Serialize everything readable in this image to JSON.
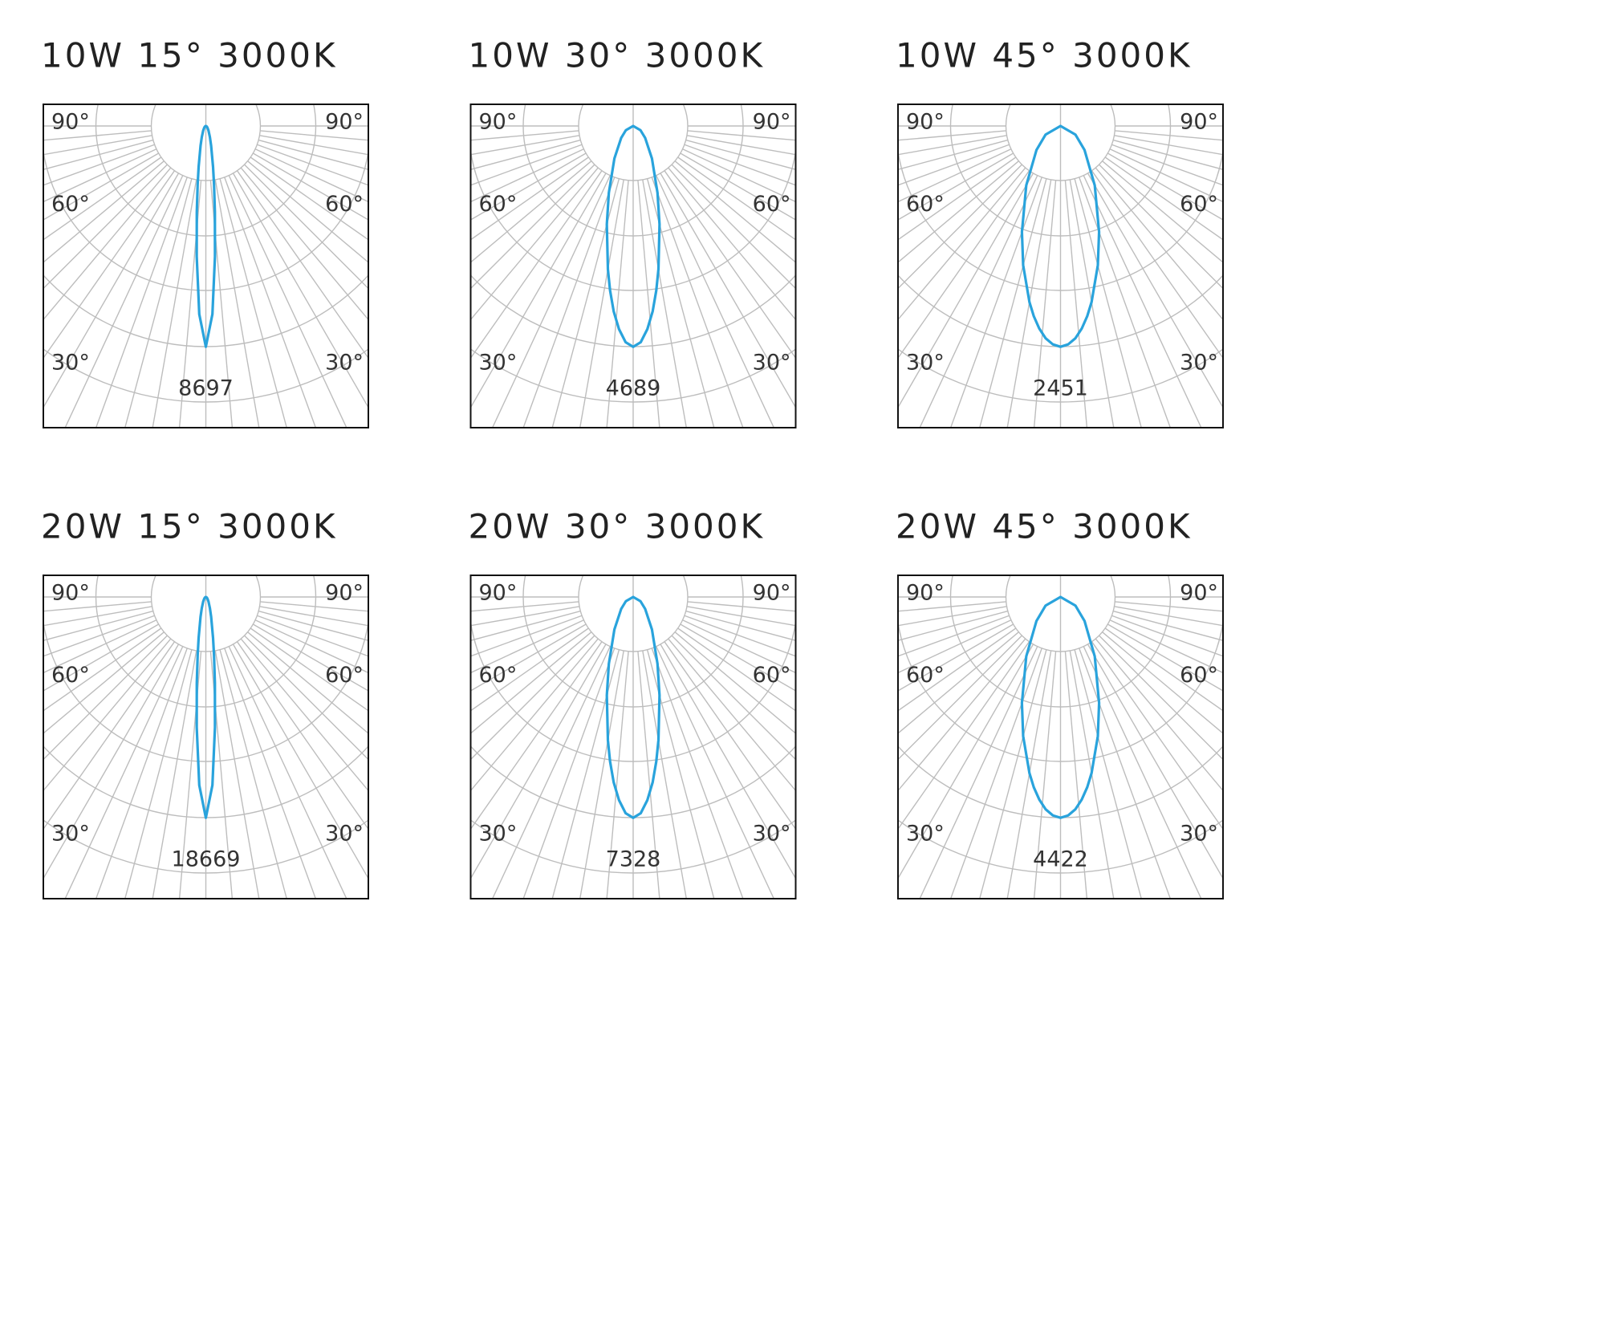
{
  "chart_data": [
    {
      "type": "polar",
      "title": "10W 15°  3000K",
      "color": "#29a3dc",
      "rlim": [
        0,
        10871
      ],
      "angle_ticks": [
        {
          "value": 90,
          "label": "90°"
        },
        {
          "value": 60,
          "label": "60°"
        },
        {
          "value": 30,
          "label": "30°"
        }
      ],
      "x": [
        -90,
        -60,
        -45,
        -30,
        -20,
        -15,
        -10,
        -8,
        -6,
        -4,
        -2,
        0,
        2,
        4,
        6,
        8,
        10,
        15,
        20,
        30,
        45,
        60,
        90
      ],
      "values": [
        0,
        41,
        86,
        209,
        468,
        805,
        1635,
        2313,
        3409,
        5149,
        7419,
        8697,
        7419,
        5149,
        3409,
        2313,
        1635,
        805,
        468,
        209,
        86,
        41,
        0
      ]
    },
    {
      "type": "polar",
      "title": "10W 30°  3000K",
      "color": "#29a3dc",
      "rlim": [
        0,
        5861
      ],
      "angle_ticks": [
        {
          "value": 90,
          "label": "90°"
        },
        {
          "value": 60,
          "label": "60°"
        },
        {
          "value": 30,
          "label": "30°"
        }
      ],
      "x": [
        -90,
        -60,
        -45,
        -30,
        -20,
        -15,
        -10,
        -8,
        -6,
        -4,
        -2,
        0,
        2,
        4,
        6,
        8,
        10,
        15,
        20,
        30,
        45,
        60,
        90
      ],
      "values": [
        0,
        178,
        361,
        797,
        1510,
        2162,
        3090,
        3526,
        3958,
        4323,
        4595,
        4689,
        4595,
        4323,
        3958,
        3526,
        3090,
        2162,
        1510,
        797,
        361,
        178,
        0
      ]
    },
    {
      "type": "polar",
      "title": "10W 45°  3000K",
      "color": "#29a3dc",
      "rlim": [
        0,
        3064
      ],
      "angle_ticks": [
        {
          "value": 90,
          "label": "90°"
        },
        {
          "value": 60,
          "label": "60°"
        },
        {
          "value": 30,
          "label": "30°"
        }
      ],
      "x": [
        -90,
        -60,
        -45,
        -30,
        -20,
        -15,
        -10,
        -8,
        -6,
        -4,
        -2,
        0,
        2,
        4,
        6,
        8,
        10,
        15,
        20,
        30,
        45,
        60,
        90
      ],
      "values": [
        0,
        191,
        377,
        760,
        1252,
        1601,
        1985,
        2132,
        2260,
        2363,
        2426,
        2451,
        2426,
        2363,
        2260,
        2132,
        1985,
        1601,
        1252,
        760,
        377,
        191,
        0
      ]
    },
    {
      "type": "polar",
      "title": "20W 15°  3000K",
      "color": "#29a3dc",
      "rlim": [
        0,
        23336
      ],
      "angle_ticks": [
        {
          "value": 90,
          "label": "90°"
        },
        {
          "value": 60,
          "label": "60°"
        },
        {
          "value": 30,
          "label": "30°"
        }
      ],
      "x": [
        -90,
        -60,
        -45,
        -30,
        -20,
        -15,
        -10,
        -8,
        -6,
        -4,
        -2,
        0,
        2,
        4,
        6,
        8,
        10,
        15,
        20,
        30,
        45,
        60,
        90
      ],
      "values": [
        0,
        88,
        185,
        448,
        1004,
        1729,
        3510,
        4966,
        7318,
        11052,
        15925,
        18669,
        15925,
        11052,
        7318,
        4966,
        3510,
        1729,
        1004,
        448,
        185,
        88,
        0
      ]
    },
    {
      "type": "polar",
      "title": "20W 30°  3000K",
      "color": "#29a3dc",
      "rlim": [
        0,
        9160
      ],
      "angle_ticks": [
        {
          "value": 90,
          "label": "90°"
        },
        {
          "value": 60,
          "label": "60°"
        },
        {
          "value": 30,
          "label": "30°"
        }
      ],
      "x": [
        -90,
        -60,
        -45,
        -30,
        -20,
        -15,
        -10,
        -8,
        -6,
        -4,
        -2,
        0,
        2,
        4,
        6,
        8,
        10,
        15,
        20,
        30,
        45,
        60,
        90
      ],
      "values": [
        0,
        278,
        564,
        1246,
        2360,
        3378,
        4829,
        5511,
        6185,
        6756,
        7181,
        7328,
        7181,
        6756,
        6185,
        5511,
        4829,
        3378,
        2360,
        1246,
        564,
        278,
        0
      ]
    },
    {
      "type": "polar",
      "title": "20W 45°  3000K",
      "color": "#29a3dc",
      "rlim": [
        0,
        5528
      ],
      "angle_ticks": [
        {
          "value": 90,
          "label": "90°"
        },
        {
          "value": 60,
          "label": "60°"
        },
        {
          "value": 30,
          "label": "30°"
        }
      ],
      "x": [
        -90,
        -60,
        -45,
        -30,
        -20,
        -15,
        -10,
        -8,
        -6,
        -4,
        -2,
        0,
        2,
        4,
        6,
        8,
        10,
        15,
        20,
        30,
        45,
        60,
        90
      ],
      "values": [
        0,
        345,
        681,
        1371,
        2260,
        2888,
        3582,
        3847,
        4077,
        4263,
        4378,
        4422,
        4378,
        4263,
        4077,
        3847,
        3582,
        2888,
        2260,
        1371,
        681,
        345,
        0
      ]
    }
  ]
}
